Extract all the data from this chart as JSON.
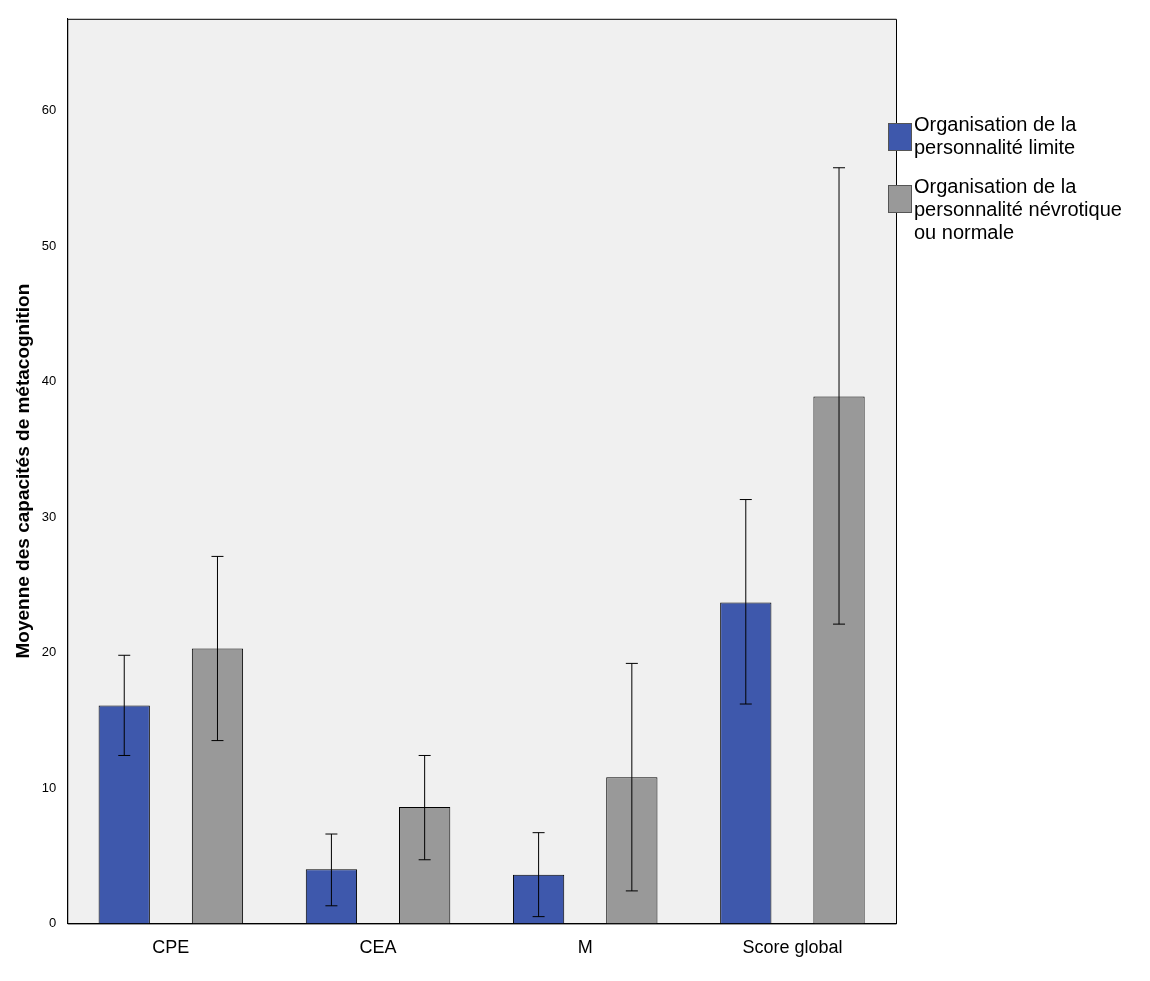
{
  "chart_data": {
    "type": "bar",
    "ylabel": "Moyenne des capacités de métacognition",
    "categories": [
      "CPE",
      "CEA",
      "M",
      "Score global"
    ],
    "series": [
      {
        "name": "Organisation de la personnalité limite",
        "color": "#3e58ac",
        "values": [
          16.1,
          4.0,
          3.6,
          23.7
        ],
        "errors": [
          [
            12.4,
            19.8
          ],
          [
            1.3,
            6.6
          ],
          [
            0.5,
            6.7
          ],
          [
            16.2,
            31.3
          ]
        ]
      },
      {
        "name": "Organisation de la personnalité névrotique ou normale",
        "color": "#999999",
        "values": [
          20.3,
          8.6,
          10.8,
          38.9
        ],
        "errors": [
          [
            13.5,
            27.1
          ],
          [
            4.7,
            12.4
          ],
          [
            2.4,
            19.2
          ],
          [
            22.1,
            55.8
          ]
        ]
      }
    ],
    "ylim": [
      0,
      66.8
    ],
    "yticks": [
      0,
      10,
      20,
      30,
      40,
      50,
      60
    ],
    "grid": false,
    "legend": "right"
  }
}
